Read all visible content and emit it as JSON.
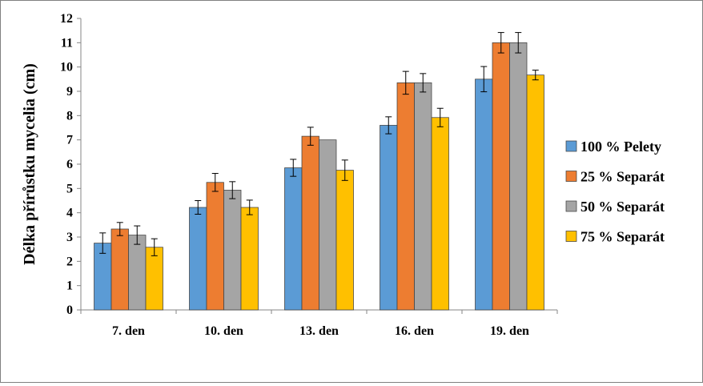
{
  "chart_data": {
    "type": "bar",
    "ylabel": "Délka přírůstku mycelia (cm)",
    "xlabel": "",
    "ylim": [
      0,
      12
    ],
    "ytick_step": 1,
    "grid": false,
    "legend_position": "right",
    "categories": [
      "7. den",
      "10. den",
      "13. den",
      "16. den",
      "19. den"
    ],
    "series": [
      {
        "name": "100 % Pelety",
        "color": "#5b9bd5",
        "values": [
          2.75,
          4.22,
          5.85,
          7.6,
          9.5
        ],
        "errors": [
          0.42,
          0.28,
          0.35,
          0.35,
          0.52
        ]
      },
      {
        "name": "25 % Separát",
        "color": "#ed7d31",
        "values": [
          3.33,
          5.25,
          7.15,
          9.35,
          11.0
        ],
        "errors": [
          0.27,
          0.37,
          0.37,
          0.47,
          0.42
        ]
      },
      {
        "name": "50 % Separát",
        "color": "#a5a5a5",
        "values": [
          3.08,
          4.93,
          7.0,
          9.35,
          11.0
        ],
        "errors": [
          0.38,
          0.35,
          0.0,
          0.38,
          0.42
        ]
      },
      {
        "name": "75 % Separát",
        "color": "#ffc000",
        "values": [
          2.58,
          4.22,
          5.75,
          7.92,
          9.67
        ],
        "errors": [
          0.35,
          0.3,
          0.42,
          0.38,
          0.2
        ]
      }
    ]
  }
}
